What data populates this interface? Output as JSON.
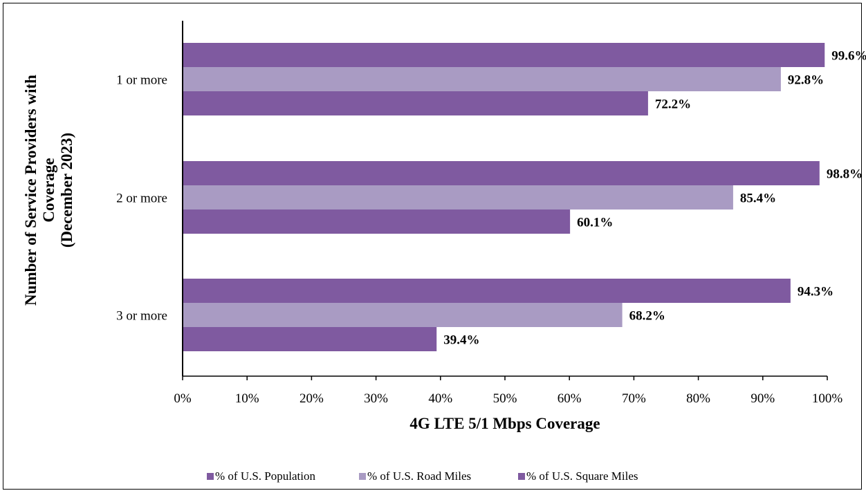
{
  "chart_data": {
    "type": "bar",
    "orientation": "horizontal",
    "xlabel": "4G LTE 5/1 Mbps Coverage",
    "ylabel_lines": [
      "Number of Service Providers with",
      "Coverage",
      "(December 2023)"
    ],
    "categories": [
      "1 or more",
      "2 or more",
      "3 or more"
    ],
    "x_ticks": [
      "0%",
      "10%",
      "20%",
      "30%",
      "40%",
      "50%",
      "60%",
      "70%",
      "80%",
      "90%",
      "100%"
    ],
    "xlim": [
      0,
      100
    ],
    "series": [
      {
        "name": "% of U.S. Population",
        "color": "#7f5aa0",
        "values": [
          99.6,
          98.8,
          94.3
        ],
        "labels": [
          "99.6%",
          "98.8%",
          "94.3%"
        ]
      },
      {
        "name": "% of U.S. Road Miles",
        "color": "#a99bc3",
        "values": [
          92.8,
          85.4,
          68.2
        ],
        "labels": [
          "92.8%",
          "85.4%",
          "68.2%"
        ]
      },
      {
        "name": "% of U.S. Square Miles",
        "color": "#7f5aa0",
        "values": [
          72.2,
          60.1,
          39.4
        ],
        "labels": [
          "72.2%",
          "60.1%",
          "39.4%"
        ]
      }
    ],
    "legend_position": "bottom",
    "grid": false
  }
}
